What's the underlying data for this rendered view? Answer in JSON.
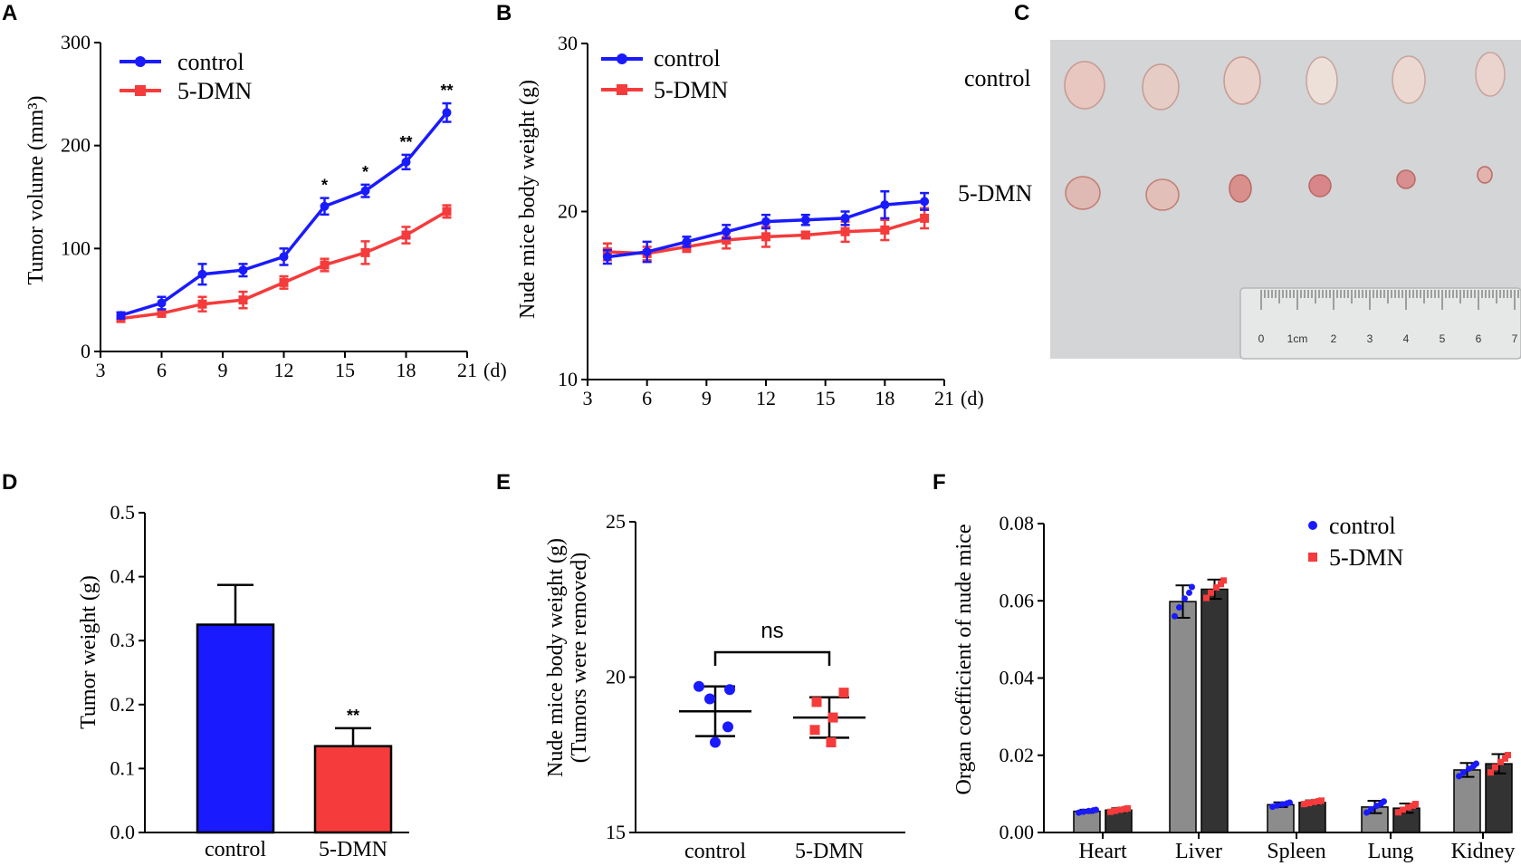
{
  "colors": {
    "control": "#1a1aff",
    "treated": "#f53b3b",
    "grey_bar": "#8c8c8c",
    "dark_bar": "#333333",
    "photo_bg": "#d3d5d6",
    "ruler": "#e6e8e8"
  },
  "panels": {
    "A": "A",
    "B": "B",
    "C": "C",
    "D": "D",
    "E": "E",
    "F": "F"
  },
  "photo": {
    "row_labels": [
      "control",
      "5-DMN"
    ],
    "ruler_numbers": [
      "0",
      "1cm",
      "2",
      "3",
      "4",
      "5",
      "6",
      "7"
    ]
  },
  "chart_data": [
    {
      "id": "A",
      "type": "line",
      "title": "",
      "xlabel": "(d)",
      "ylabel": "Tumor volume (mm³)",
      "xlim": [
        3,
        21
      ],
      "ylim": [
        0,
        300
      ],
      "xticks": [
        3,
        6,
        9,
        12,
        15,
        18,
        21
      ],
      "yticks": [
        0,
        100,
        200,
        300
      ],
      "x": [
        4,
        6,
        8,
        10,
        12,
        14,
        16,
        18,
        20
      ],
      "series": [
        {
          "name": "control",
          "color": "#1a1aff",
          "marker": "circle",
          "values": [
            35,
            47,
            75,
            79,
            92,
            141,
            156,
            184,
            232
          ],
          "errors": [
            3,
            6,
            10,
            6,
            8,
            8,
            6,
            7,
            9
          ]
        },
        {
          "name": "5-DMN",
          "color": "#f53b3b",
          "marker": "square",
          "values": [
            32,
            37,
            46,
            50,
            67,
            84,
            96,
            113,
            136
          ],
          "errors": [
            3,
            3,
            7,
            8,
            6,
            6,
            11,
            8,
            6
          ]
        }
      ],
      "significance": [
        {
          "x": 14,
          "label": "*"
        },
        {
          "x": 16,
          "label": "*"
        },
        {
          "x": 18,
          "label": "**"
        },
        {
          "x": 20,
          "label": "**"
        }
      ]
    },
    {
      "id": "B",
      "type": "line",
      "title": "",
      "xlabel": "(d)",
      "ylabel": "Nude mice body weight (g)",
      "xlim": [
        3,
        21
      ],
      "ylim": [
        10,
        30
      ],
      "xticks": [
        3,
        6,
        9,
        12,
        15,
        18,
        21
      ],
      "yticks": [
        10,
        20,
        30
      ],
      "x": [
        4,
        6,
        8,
        10,
        12,
        14,
        16,
        18,
        20
      ],
      "series": [
        {
          "name": "control",
          "color": "#1a1aff",
          "marker": "circle",
          "values": [
            17.3,
            17.6,
            18.2,
            18.8,
            19.4,
            19.5,
            19.6,
            20.4,
            20.6
          ],
          "errors": [
            0.4,
            0.6,
            0.3,
            0.4,
            0.4,
            0.3,
            0.4,
            0.8,
            0.5
          ]
        },
        {
          "name": "5-DMN",
          "color": "#f53b3b",
          "marker": "square",
          "values": [
            17.6,
            17.5,
            17.9,
            18.3,
            18.5,
            18.6,
            18.8,
            18.9,
            19.6
          ],
          "errors": [
            0.5,
            0.4,
            0.3,
            0.5,
            0.6,
            0.2,
            0.6,
            0.6,
            0.6
          ]
        }
      ]
    },
    {
      "id": "D",
      "type": "bar",
      "title": "",
      "xlabel": "",
      "ylabel": "Tumor weight (g)",
      "ylim": [
        0,
        0.5
      ],
      "yticks": [
        "0.0",
        "0.1",
        "0.2",
        "0.3",
        "0.4",
        "0.5"
      ],
      "categories": [
        "control",
        "5-DMN"
      ],
      "values": [
        0.325,
        0.135
      ],
      "errors": [
        0.062,
        0.028
      ],
      "bar_colors": [
        "#1a1aff",
        "#f53b3b"
      ],
      "significance": [
        {
          "category": "5-DMN",
          "label": "**"
        }
      ]
    },
    {
      "id": "E",
      "type": "scatter",
      "title": "",
      "xlabel": "",
      "ylabel": "Nude mice body weight (g)",
      "ylabel2": "(Tumors were removed)",
      "ylim": [
        15,
        25
      ],
      "yticks": [
        15,
        20,
        25
      ],
      "categories": [
        "control",
        "5-DMN"
      ],
      "series": [
        {
          "name": "control",
          "color": "#1a1aff",
          "marker": "circle",
          "points": [
            19.7,
            19.6,
            19.3,
            18.4,
            17.9
          ],
          "mean": 18.9,
          "sd": 0.8
        },
        {
          "name": "5-DMN",
          "color": "#f53b3b",
          "marker": "square",
          "points": [
            19.5,
            19.2,
            18.7,
            18.3,
            17.9
          ],
          "mean": 18.7,
          "sd": 0.65
        }
      ],
      "comparison": "ns"
    },
    {
      "id": "F",
      "type": "bar",
      "title": "",
      "xlabel": "",
      "ylabel": "Organ coefficient of nude mice",
      "ylim": [
        0,
        0.08
      ],
      "yticks": [
        "0.00",
        "0.02",
        "0.04",
        "0.06",
        "0.08"
      ],
      "categories": [
        "Heart",
        "Liver",
        "Spleen",
        "Lung",
        "Kidney"
      ],
      "series": [
        {
          "name": "control",
          "bar_color": "#8c8c8c",
          "dot_color": "#1a1aff",
          "values": [
            0.0055,
            0.0598,
            0.0072,
            0.0066,
            0.0162
          ],
          "errors": [
            0.0004,
            0.0042,
            0.0006,
            0.0016,
            0.0018
          ]
        },
        {
          "name": "5-DMN",
          "bar_color": "#333333",
          "dot_color": "#f53b3b",
          "values": [
            0.0058,
            0.063,
            0.0078,
            0.0063,
            0.0178
          ],
          "errors": [
            0.0005,
            0.0025,
            0.0005,
            0.0012,
            0.0025
          ]
        }
      ],
      "legend_position": "top-right"
    }
  ]
}
